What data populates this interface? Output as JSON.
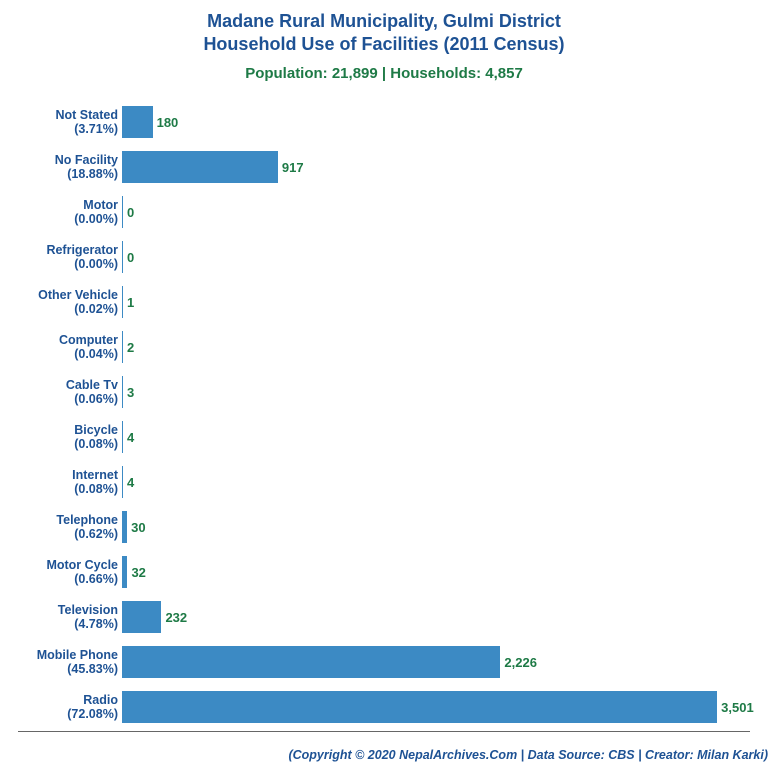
{
  "title_line1": "Madane Rural Municipality, Gulmi District",
  "title_line2": "Household Use of Facilities (2011 Census)",
  "title_color": "#1e5294",
  "title_fontsize": 18,
  "subtitle": "Population: 21,899 | Households: 4,857",
  "subtitle_color": "#1e7a46",
  "subtitle_fontsize": 15,
  "credit": "(Copyright © 2020 NepalArchives.Com | Data Source: CBS | Creator: Milan Karki)",
  "credit_color": "#1e5294",
  "credit_fontsize": 12.5,
  "label_color": "#1e5294",
  "label_fontsize": 12.5,
  "value_color": "#1e7a46",
  "value_fontsize": 13,
  "bar_color": "#3c8ac4",
  "background_color": "#ffffff",
  "xmax": 3600,
  "chart": {
    "type": "bar-horizontal",
    "items": [
      {
        "name": "Not Stated",
        "pct": "(3.71%)",
        "value": 180,
        "value_text": "180"
      },
      {
        "name": "No Facility",
        "pct": "(18.88%)",
        "value": 917,
        "value_text": "917"
      },
      {
        "name": "Motor",
        "pct": "(0.00%)",
        "value": 0,
        "value_text": "0"
      },
      {
        "name": "Refrigerator",
        "pct": "(0.00%)",
        "value": 0,
        "value_text": "0"
      },
      {
        "name": "Other Vehicle",
        "pct": "(0.02%)",
        "value": 1,
        "value_text": "1"
      },
      {
        "name": "Computer",
        "pct": "(0.04%)",
        "value": 2,
        "value_text": "2"
      },
      {
        "name": "Cable Tv",
        "pct": "(0.06%)",
        "value": 3,
        "value_text": "3"
      },
      {
        "name": "Bicycle",
        "pct": "(0.08%)",
        "value": 4,
        "value_text": "4"
      },
      {
        "name": "Internet",
        "pct": "(0.08%)",
        "value": 4,
        "value_text": "4"
      },
      {
        "name": "Telephone",
        "pct": "(0.62%)",
        "value": 30,
        "value_text": "30"
      },
      {
        "name": "Motor Cycle",
        "pct": "(0.66%)",
        "value": 32,
        "value_text": "32"
      },
      {
        "name": "Television",
        "pct": "(4.78%)",
        "value": 232,
        "value_text": "232"
      },
      {
        "name": "Mobile Phone",
        "pct": "(45.83%)",
        "value": 2226,
        "value_text": "2,226"
      },
      {
        "name": "Radio",
        "pct": "(72.08%)",
        "value": 3501,
        "value_text": "3,501"
      }
    ]
  }
}
